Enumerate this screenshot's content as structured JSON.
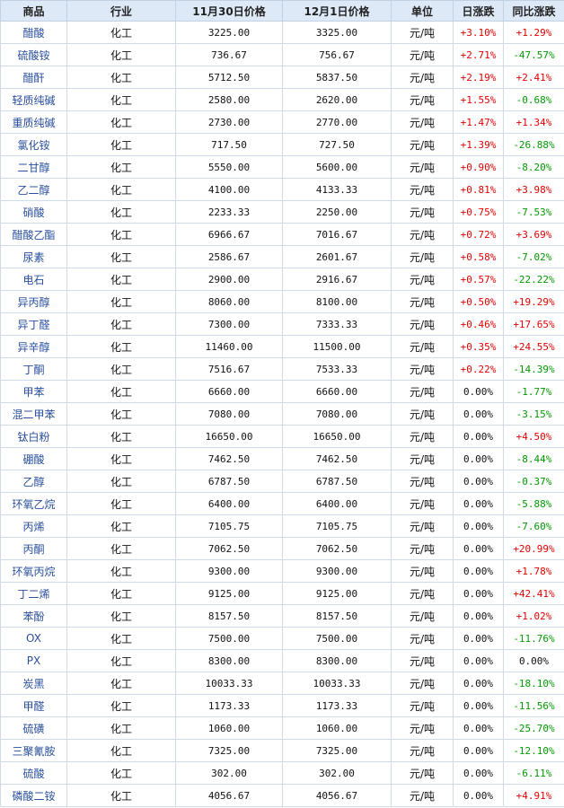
{
  "headers": [
    "商品",
    "行业",
    "11月30日价格",
    "12月1日价格",
    "单位",
    "日涨跌",
    "同比涨跌"
  ],
  "rows": [
    [
      "醋酸",
      "化工",
      "3225.00",
      "3325.00",
      "元/吨",
      "+3.10%",
      "+1.29%"
    ],
    [
      "硫酸铵",
      "化工",
      "736.67",
      "756.67",
      "元/吨",
      "+2.71%",
      "-47.57%"
    ],
    [
      "醋酐",
      "化工",
      "5712.50",
      "5837.50",
      "元/吨",
      "+2.19%",
      "+2.41%"
    ],
    [
      "轻质纯碱",
      "化工",
      "2580.00",
      "2620.00",
      "元/吨",
      "+1.55%",
      "-0.68%"
    ],
    [
      "重质纯碱",
      "化工",
      "2730.00",
      "2770.00",
      "元/吨",
      "+1.47%",
      "+1.34%"
    ],
    [
      "氯化铵",
      "化工",
      "717.50",
      "727.50",
      "元/吨",
      "+1.39%",
      "-26.88%"
    ],
    [
      "二甘醇",
      "化工",
      "5550.00",
      "5600.00",
      "元/吨",
      "+0.90%",
      "-8.20%"
    ],
    [
      "乙二醇",
      "化工",
      "4100.00",
      "4133.33",
      "元/吨",
      "+0.81%",
      "+3.98%"
    ],
    [
      "硝酸",
      "化工",
      "2233.33",
      "2250.00",
      "元/吨",
      "+0.75%",
      "-7.53%"
    ],
    [
      "醋酸乙酯",
      "化工",
      "6966.67",
      "7016.67",
      "元/吨",
      "+0.72%",
      "+3.69%"
    ],
    [
      "尿素",
      "化工",
      "2586.67",
      "2601.67",
      "元/吨",
      "+0.58%",
      "-7.02%"
    ],
    [
      "电石",
      "化工",
      "2900.00",
      "2916.67",
      "元/吨",
      "+0.57%",
      "-22.22%"
    ],
    [
      "异丙醇",
      "化工",
      "8060.00",
      "8100.00",
      "元/吨",
      "+0.50%",
      "+19.29%"
    ],
    [
      "异丁醛",
      "化工",
      "7300.00",
      "7333.33",
      "元/吨",
      "+0.46%",
      "+17.65%"
    ],
    [
      "异辛醇",
      "化工",
      "11460.00",
      "11500.00",
      "元/吨",
      "+0.35%",
      "+24.55%"
    ],
    [
      "丁酮",
      "化工",
      "7516.67",
      "7533.33",
      "元/吨",
      "+0.22%",
      "-14.39%"
    ],
    [
      "甲苯",
      "化工",
      "6660.00",
      "6660.00",
      "元/吨",
      "0.00%",
      "-1.77%"
    ],
    [
      "混二甲苯",
      "化工",
      "7080.00",
      "7080.00",
      "元/吨",
      "0.00%",
      "-3.15%"
    ],
    [
      "钛白粉",
      "化工",
      "16650.00",
      "16650.00",
      "元/吨",
      "0.00%",
      "+4.50%"
    ],
    [
      "硼酸",
      "化工",
      "7462.50",
      "7462.50",
      "元/吨",
      "0.00%",
      "-8.44%"
    ],
    [
      "乙醇",
      "化工",
      "6787.50",
      "6787.50",
      "元/吨",
      "0.00%",
      "-0.37%"
    ],
    [
      "环氧乙烷",
      "化工",
      "6400.00",
      "6400.00",
      "元/吨",
      "0.00%",
      "-5.88%"
    ],
    [
      "丙烯",
      "化工",
      "7105.75",
      "7105.75",
      "元/吨",
      "0.00%",
      "-7.60%"
    ],
    [
      "丙酮",
      "化工",
      "7062.50",
      "7062.50",
      "元/吨",
      "0.00%",
      "+20.99%"
    ],
    [
      "环氧丙烷",
      "化工",
      "9300.00",
      "9300.00",
      "元/吨",
      "0.00%",
      "+1.78%"
    ],
    [
      "丁二烯",
      "化工",
      "9125.00",
      "9125.00",
      "元/吨",
      "0.00%",
      "+42.41%"
    ],
    [
      "苯酚",
      "化工",
      "8157.50",
      "8157.50",
      "元/吨",
      "0.00%",
      "+1.02%"
    ],
    [
      "OX",
      "化工",
      "7500.00",
      "7500.00",
      "元/吨",
      "0.00%",
      "-11.76%"
    ],
    [
      "PX",
      "化工",
      "8300.00",
      "8300.00",
      "元/吨",
      "0.00%",
      "0.00%"
    ],
    [
      "炭黑",
      "化工",
      "10033.33",
      "10033.33",
      "元/吨",
      "0.00%",
      "-18.10%"
    ],
    [
      "甲醛",
      "化工",
      "1173.33",
      "1173.33",
      "元/吨",
      "0.00%",
      "-11.56%"
    ],
    [
      "硫磺",
      "化工",
      "1060.00",
      "1060.00",
      "元/吨",
      "0.00%",
      "-25.70%"
    ],
    [
      "三聚氰胺",
      "化工",
      "7325.00",
      "7325.00",
      "元/吨",
      "0.00%",
      "-12.10%"
    ],
    [
      "硫酸",
      "化工",
      "302.00",
      "302.00",
      "元/吨",
      "0.00%",
      "-6.11%"
    ],
    [
      "磷酸二铵",
      "化工",
      "4056.67",
      "4056.67",
      "元/吨",
      "0.00%",
      "+4.91%"
    ]
  ],
  "colors": {
    "up": "#e00000",
    "down": "#009900",
    "flat": "#111111",
    "header_bg": "#dde9f6"
  }
}
